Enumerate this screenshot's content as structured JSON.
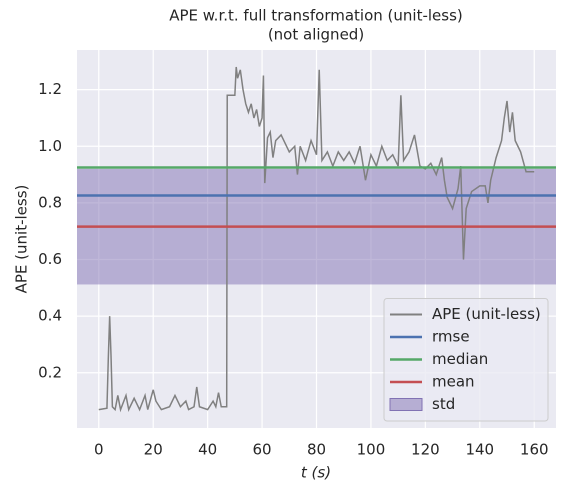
{
  "chart_data": {
    "type": "line",
    "title": "APE w.r.t. full transformation (unit-less)",
    "subtitle": "(not aligned)",
    "xlabel": "t (s)",
    "ylabel": "APE (unit-less)",
    "xlim": [
      -8,
      168
    ],
    "ylim": [
      0.005,
      1.34
    ],
    "xticks": [
      0,
      20,
      40,
      60,
      80,
      100,
      120,
      140,
      160
    ],
    "yticks": [
      0.2,
      0.4,
      0.6,
      0.8,
      {
        "value": 1,
        "label": "1.0"
      },
      1.2
    ],
    "grid": true,
    "legend": "lower right",
    "series": [
      {
        "name": "APE (unit-less)",
        "color": "#808080",
        "x": [
          0,
          3,
          3.5,
          4,
          4.5,
          5,
          6,
          7,
          8,
          10,
          11,
          13,
          15,
          17,
          18,
          20,
          21,
          23,
          26,
          28,
          30,
          32,
          33,
          35,
          36,
          37,
          40,
          42,
          43,
          44,
          45,
          47,
          47.2,
          50,
          50.5,
          51,
          52,
          53,
          54,
          55,
          56,
          57,
          58,
          59,
          60,
          60.5,
          61,
          62,
          63,
          64,
          65,
          67,
          70,
          72,
          73,
          74,
          76,
          78,
          80,
          81,
          82,
          84,
          86,
          88,
          90,
          92,
          94,
          96,
          98,
          100,
          102,
          104,
          106,
          108,
          110,
          111,
          112,
          114,
          116,
          118,
          120,
          122,
          124,
          126,
          127,
          128,
          130,
          132,
          133,
          134,
          135,
          137,
          140,
          142,
          143,
          144,
          146,
          148,
          149,
          150,
          151,
          152,
          153,
          155,
          157,
          160
        ],
        "values": [
          0.07,
          0.075,
          0.25,
          0.4,
          0.26,
          0.08,
          0.07,
          0.12,
          0.07,
          0.12,
          0.07,
          0.11,
          0.07,
          0.12,
          0.07,
          0.14,
          0.1,
          0.07,
          0.08,
          0.12,
          0.08,
          0.1,
          0.07,
          0.08,
          0.15,
          0.08,
          0.07,
          0.1,
          0.08,
          0.13,
          0.08,
          0.08,
          1.18,
          1.18,
          1.28,
          1.24,
          1.27,
          1.2,
          1.15,
          1.12,
          1.15,
          1.1,
          1.13,
          1.07,
          1.1,
          1.25,
          0.87,
          1.03,
          1.05,
          0.96,
          1.02,
          1.04,
          0.98,
          1.0,
          0.9,
          1.0,
          0.95,
          1.02,
          0.97,
          1.27,
          0.95,
          0.98,
          0.93,
          0.98,
          0.95,
          0.98,
          0.94,
          1.0,
          0.88,
          0.97,
          0.93,
          1.0,
          0.95,
          0.97,
          0.93,
          1.18,
          0.95,
          0.98,
          1.04,
          0.93,
          0.92,
          0.94,
          0.9,
          0.96,
          0.88,
          0.82,
          0.78,
          0.85,
          0.93,
          0.6,
          0.78,
          0.84,
          0.86,
          0.86,
          0.8,
          0.88,
          0.96,
          1.02,
          1.1,
          1.16,
          1.05,
          1.12,
          1.02,
          0.98,
          0.91,
          0.91
        ]
      }
    ],
    "hlines": [
      {
        "name": "rmse",
        "color": "#4c72b0",
        "value": 0.826
      },
      {
        "name": "median",
        "color": "#55a868",
        "value": 0.925
      },
      {
        "name": "mean",
        "color": "#c44e52",
        "value": 0.716
      }
    ],
    "std_band": {
      "name": "std",
      "color": "#8172b3",
      "value": 0.204
    }
  }
}
